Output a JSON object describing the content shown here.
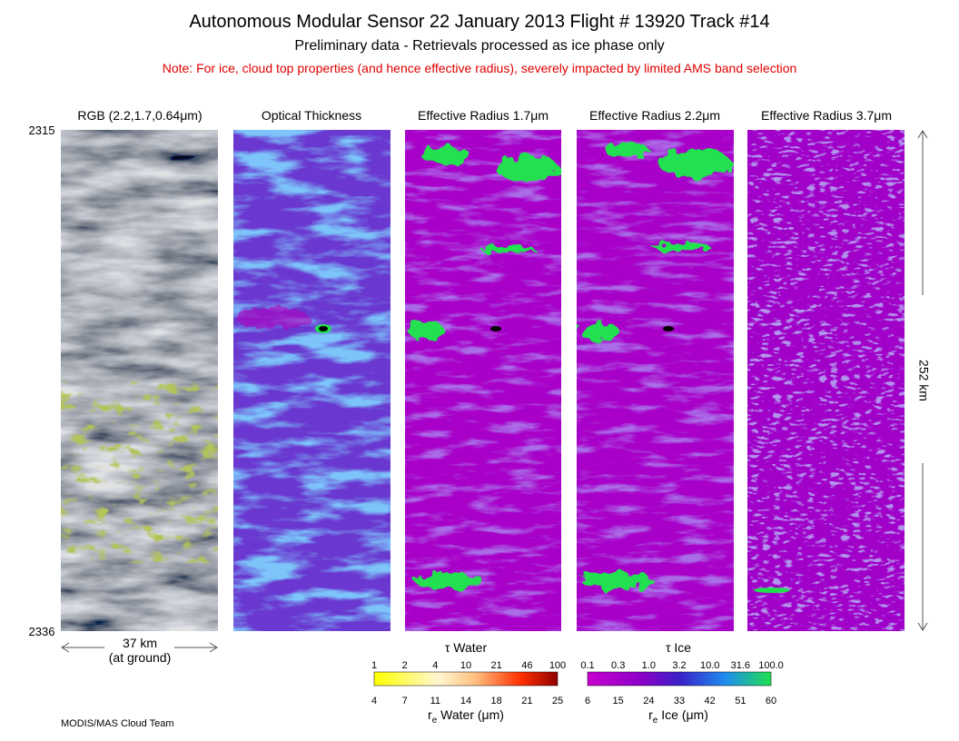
{
  "header": {
    "title": "Autonomous Modular Sensor  22 January 2013  Flight # 13920 Track #14",
    "subtitle": "Preliminary data - Retrievals processed as ice phase only",
    "note": "Note: For ice, cloud top properties (and hence effective radius), severely impacted by limited AMS band selection"
  },
  "panels": [
    {
      "title": "RGB (2.2,1.7,0.64μm)"
    },
    {
      "title": "Optical Thickness"
    },
    {
      "title": "Effective Radius 1.7μm"
    },
    {
      "title": "Effective Radius 2.2μm"
    },
    {
      "title": "Effective Radius 3.7μm"
    }
  ],
  "time_start": "2315",
  "time_end": "2336",
  "width_label": "37 km",
  "width_note": "(at ground)",
  "length_label": "252 km",
  "colorbars": [
    {
      "top_label": "τ Water",
      "top_ticks": [
        "1",
        "2",
        "4",
        "10",
        "21",
        "46",
        "100"
      ],
      "bottom_ticks": [
        "4",
        "7",
        "11",
        "14",
        "18",
        "21",
        "25"
      ],
      "bottom_label": {
        "symbol": "r",
        "subscript": "e",
        "text": " Water (μm)"
      }
    },
    {
      "top_label": "τ Ice",
      "top_ticks": [
        "0.1",
        "0.3",
        "1.0",
        "3.2",
        "10.0",
        "31.6",
        "100.0"
      ],
      "bottom_ticks": [
        "6",
        "15",
        "24",
        "33",
        "42",
        "51",
        "60"
      ],
      "bottom_label": {
        "symbol": "r",
        "subscript": "e",
        "text": " Ice (μm)"
      }
    }
  ],
  "credit": "MODIS/MAS Cloud Team"
}
